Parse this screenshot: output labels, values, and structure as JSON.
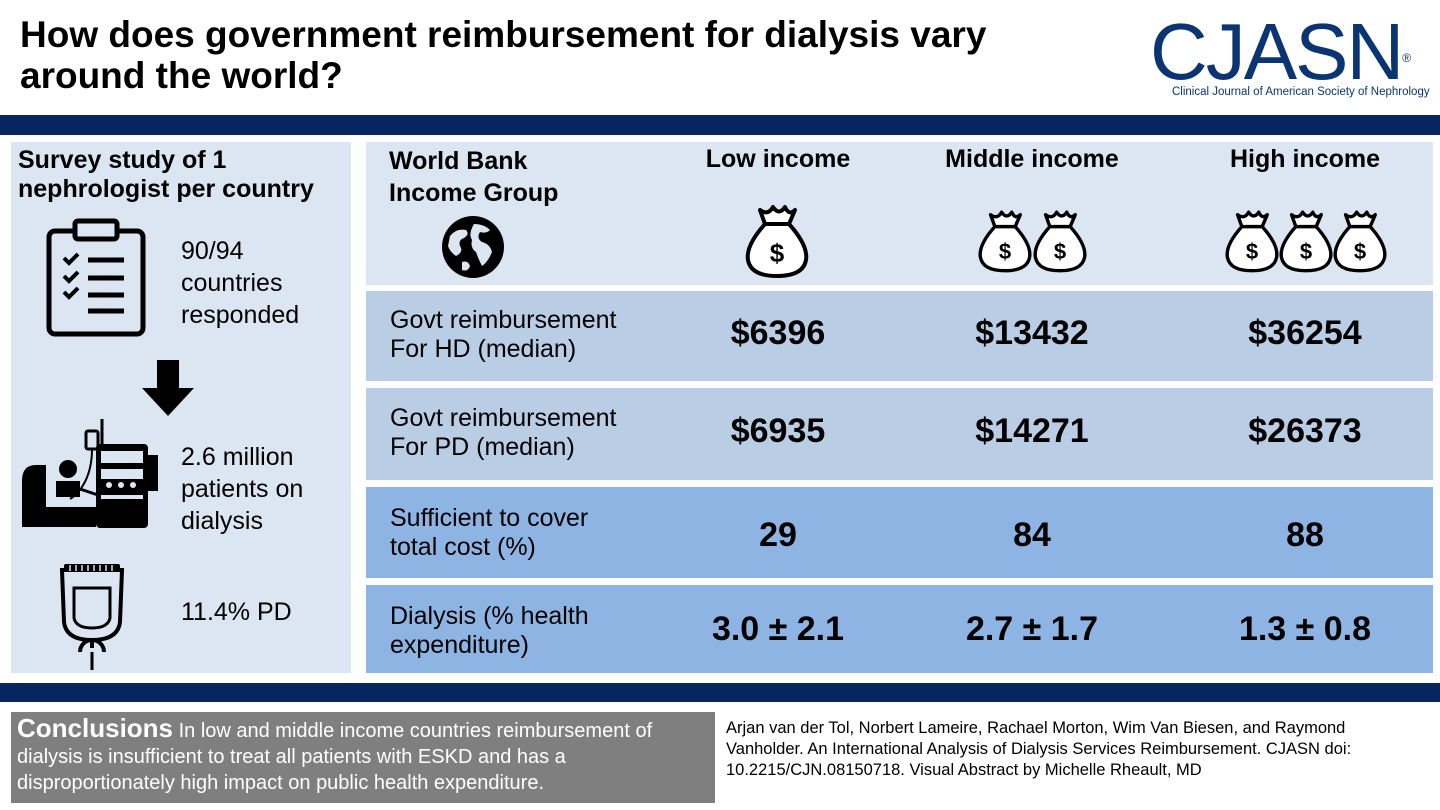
{
  "title": "How does government reimbursement for dialysis vary around the world?",
  "logo": {
    "name": "CJASN",
    "trademark": "®",
    "subtitle": "Clinical Journal of American Society of Nephrology"
  },
  "left_panel": {
    "heading": "Survey study of 1 nephrologist per country",
    "response_stat": "90/94 countries responded",
    "patients_stat": "2.6 million patients on dialysis",
    "pd_stat": "11.4% PD"
  },
  "table": {
    "group_label": "World Bank Income Group",
    "columns": [
      {
        "label": "Low income",
        "money_bags": 1
      },
      {
        "label": "Middle income",
        "money_bags": 2
      },
      {
        "label": "High income",
        "money_bags": 3
      }
    ],
    "rows": [
      {
        "label": "Govt reimbursement For HD (median)",
        "values": [
          "$6396",
          "$13432",
          "$36254"
        ]
      },
      {
        "label": "Govt reimbursement For PD (median)",
        "values": [
          "$6935",
          "$14271",
          "$26373"
        ]
      },
      {
        "label": "Sufficient to cover total cost (%)",
        "values": [
          "29",
          "84",
          "88"
        ]
      },
      {
        "label": "Dialysis (% health expenditure)",
        "values": [
          "3.0 ± 2.1",
          "2.7 ± 1.7",
          "1.3 ± 0.8"
        ]
      }
    ]
  },
  "conclusions": {
    "heading": "Conclusions",
    "text": "In low and middle income countries reimbursement of dialysis is insufficient to treat all patients with ESKD and has a disproportionately high impact on public health expenditure."
  },
  "citation": "Arjan van der Tol, Norbert Lameire, Rachael Morton, Wim Van Biesen, and Raymond Vanholder. An International Analysis of Dialysis Services Reimbursement. CJASN doi: 10.2215/CJN.08150718. Visual Abstract by Michelle Rheault, MD",
  "colors": {
    "navy_band": "#072660",
    "logo_blue": "#0a3472",
    "panel_light": "#dce6f2",
    "row_mid": "#b9cde5",
    "row_dark": "#8eb4e3",
    "conclusion_bg": "#7f7f7f"
  }
}
